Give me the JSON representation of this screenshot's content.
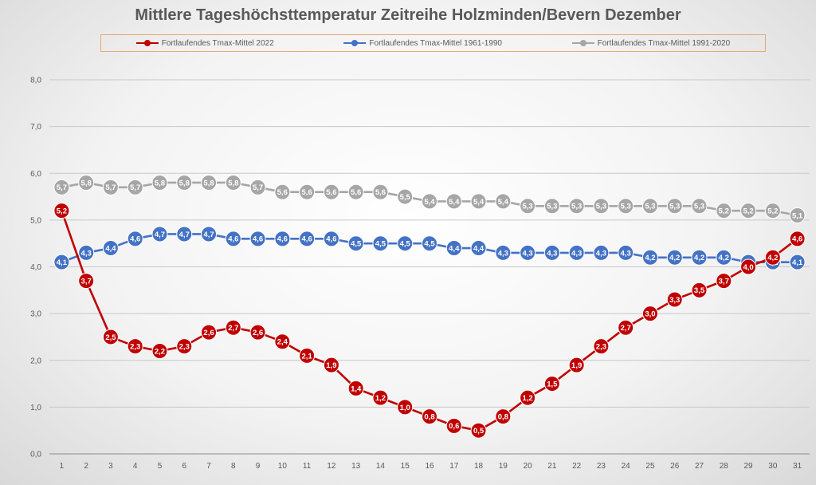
{
  "chart_data": {
    "type": "line",
    "title": "Mittlere Tageshöchsttemperatur Zeitreihe Holzminden/Bevern Dezember",
    "xlabel": "",
    "ylabel": "",
    "ylim": [
      0,
      8
    ],
    "ytick_step": 1,
    "ytick_labels": [
      "0,0",
      "1,0",
      "2,0",
      "3,0",
      "4,0",
      "5,0",
      "6,0",
      "7,0",
      "8,0"
    ],
    "x": [
      1,
      2,
      3,
      4,
      5,
      6,
      7,
      8,
      9,
      10,
      11,
      12,
      13,
      14,
      15,
      16,
      17,
      18,
      19,
      20,
      21,
      22,
      23,
      24,
      25,
      26,
      27,
      28,
      29,
      30,
      31
    ],
    "legend_position": "top",
    "series": [
      {
        "name": "Fortlaufendes Tmax-Mittel 1991-2020",
        "color": "#a6a6a6",
        "values": [
          5.7,
          5.8,
          5.7,
          5.7,
          5.8,
          5.8,
          5.8,
          5.8,
          5.7,
          5.6,
          5.6,
          5.6,
          5.6,
          5.6,
          5.5,
          5.4,
          5.4,
          5.4,
          5.4,
          5.3,
          5.3,
          5.3,
          5.3,
          5.3,
          5.3,
          5.3,
          5.3,
          5.2,
          5.2,
          5.2,
          5.1
        ],
        "labels": [
          "5,7",
          "5,8",
          "5,7",
          "5,7",
          "5,8",
          "5,8",
          "5,8",
          "5,8",
          "5,7",
          "5,6",
          "5,6",
          "5,6",
          "5,6",
          "5,6",
          "5,5",
          "5,4",
          "5,4",
          "5,4",
          "5,4",
          "5,3",
          "5,3",
          "5,3",
          "5,3",
          "5,3",
          "5,3",
          "5,3",
          "5,3",
          "5,2",
          "5,2",
          "5,2",
          "5,1"
        ]
      },
      {
        "name": "Fortlaufendes Tmax-Mittel 1961-1990",
        "color": "#4472c4",
        "values": [
          4.1,
          4.3,
          4.4,
          4.6,
          4.7,
          4.7,
          4.7,
          4.6,
          4.6,
          4.6,
          4.6,
          4.6,
          4.5,
          4.5,
          4.5,
          4.5,
          4.4,
          4.4,
          4.3,
          4.3,
          4.3,
          4.3,
          4.3,
          4.3,
          4.2,
          4.2,
          4.2,
          4.2,
          4.1,
          4.1,
          4.1
        ],
        "labels": [
          "4,1",
          "4,3",
          "4,4",
          "4,6",
          "4,7",
          "4,7",
          "4,7",
          "4,6",
          "4,6",
          "4,6",
          "4,6",
          "4,6",
          "4,5",
          "4,5",
          "4,5",
          "4,5",
          "4,4",
          "4,4",
          "4,3",
          "4,3",
          "4,3",
          "4,3",
          "4,3",
          "4,3",
          "4,2",
          "4,2",
          "4,2",
          "4,2",
          "4,1",
          "4,1",
          "4,1"
        ]
      },
      {
        "name": "Fortlaufendes Tmax-Mittel 2022",
        "color": "#c00000",
        "values": [
          5.2,
          3.7,
          2.5,
          2.3,
          2.2,
          2.3,
          2.6,
          2.7,
          2.6,
          2.4,
          2.1,
          1.9,
          1.4,
          1.2,
          1.0,
          0.8,
          0.6,
          0.5,
          0.8,
          1.2,
          1.5,
          1.9,
          2.3,
          2.7,
          3.0,
          3.3,
          3.5,
          3.7,
          4.0,
          4.2,
          4.6
        ],
        "labels": [
          "5,2",
          "3,7",
          "2,5",
          "2,3",
          "2,2",
          "2,3",
          "2,6",
          "2,7",
          "2,6",
          "2,4",
          "2,1",
          "1,9",
          "1,4",
          "1,2",
          "1,0",
          "0,8",
          "0,6",
          "0,5",
          "0,8",
          "1,2",
          "1,5",
          "1,9",
          "2,3",
          "2,7",
          "3,0",
          "3,3",
          "3,5",
          "3,7",
          "4,0",
          "4,2",
          "4,6"
        ]
      }
    ],
    "legend_order": [
      2,
      1,
      0
    ]
  }
}
